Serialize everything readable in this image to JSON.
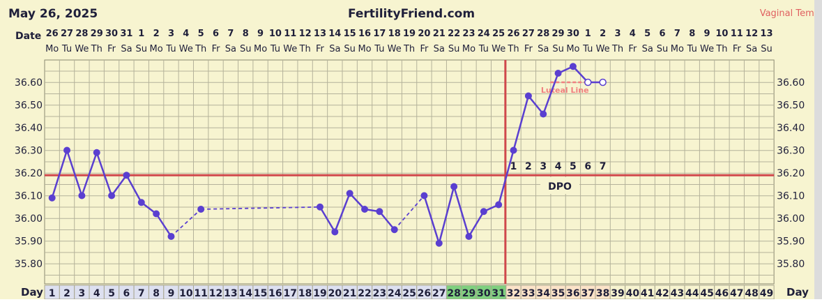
{
  "header": {
    "date_title": "May 26, 2025",
    "site": "FertilityFriend.com",
    "temp_method": "Vaginal Temp",
    "date_row_label": "Date",
    "day_row_label": "Day",
    "day_row_label_right": "Day",
    "dpo_label": "DPO"
  },
  "colors": {
    "background": "#f7f4d0",
    "grid": "#b4b29a",
    "coverline": "#d0484c",
    "ovulation_line": "#d0484c",
    "temp_line": "#5a3fd0",
    "luteal_line": "#f08080",
    "title_text": "#1f1f3a",
    "temp_method_text": "#e06060",
    "fertile_day_cell": "#7fd07f",
    "period_day_cell": "#dde0f0",
    "luteal_day_cell": "#fbe3c8",
    "future_day_cell": "#f7f4d0"
  },
  "chart_data": {
    "type": "line",
    "title": "May 26, 2025",
    "ylabel": "",
    "ylim": [
      35.75,
      36.7
    ],
    "y_ticks": [
      "36.60",
      "36.50",
      "36.40",
      "36.30",
      "36.20",
      "36.10",
      "36.00",
      "35.90",
      "35.80"
    ],
    "date_numbers": [
      "26",
      "27",
      "28",
      "29",
      "30",
      "31",
      "1",
      "2",
      "3",
      "4",
      "5",
      "6",
      "7",
      "8",
      "9",
      "10",
      "11",
      "12",
      "13",
      "14",
      "15",
      "16",
      "17",
      "18",
      "19",
      "20",
      "21",
      "22",
      "23",
      "24",
      "25",
      "26",
      "27",
      "28",
      "29",
      "30",
      "1",
      "2",
      "3",
      "4",
      "5",
      "6",
      "7",
      "8",
      "9",
      "10",
      "11",
      "12",
      "13"
    ],
    "weekdays": [
      "Mo",
      "Tu",
      "We",
      "Th",
      "Fr",
      "Sa",
      "Su",
      "Mo",
      "Tu",
      "We",
      "Th",
      "Fr",
      "Sa",
      "Su",
      "Mo",
      "Tu",
      "We",
      "Th",
      "Fr",
      "Sa",
      "Su",
      "Mo",
      "Tu",
      "We",
      "Th",
      "Fr",
      "Sa",
      "Su",
      "Mo",
      "Tu",
      "We",
      "Th",
      "Fr",
      "Sa",
      "Su",
      "Mo",
      "Tu",
      "We",
      "Th",
      "Fr",
      "Sa",
      "Su",
      "Mo",
      "Tu",
      "We",
      "Th",
      "Fr",
      "Sa",
      "Su"
    ],
    "cycle_days": [
      "1",
      "2",
      "3",
      "4",
      "5",
      "6",
      "7",
      "8",
      "9",
      "10",
      "11",
      "12",
      "13",
      "14",
      "15",
      "16",
      "17",
      "18",
      "19",
      "20",
      "21",
      "22",
      "23",
      "24",
      "25",
      "26",
      "27",
      "28",
      "29",
      "30",
      "31",
      "32",
      "33",
      "34",
      "35",
      "36",
      "37",
      "38",
      "39",
      "40",
      "41",
      "42",
      "43",
      "44",
      "45",
      "46",
      "47",
      "48",
      "49"
    ],
    "series": [
      {
        "points": [
          {
            "day": 1,
            "temp": 36.09
          },
          {
            "day": 2,
            "temp": 36.3
          },
          {
            "day": 3,
            "temp": 36.1
          },
          {
            "day": 4,
            "temp": 36.29
          },
          {
            "day": 5,
            "temp": 36.1
          },
          {
            "day": 6,
            "temp": 36.19
          },
          {
            "day": 7,
            "temp": 36.07
          },
          {
            "day": 8,
            "temp": 36.02
          },
          {
            "day": 9,
            "temp": 35.92
          },
          {
            "day": 11,
            "temp": 36.04
          },
          {
            "day": 19,
            "temp": 36.05
          },
          {
            "day": 20,
            "temp": 35.94
          },
          {
            "day": 21,
            "temp": 36.11
          },
          {
            "day": 22,
            "temp": 36.04
          },
          {
            "day": 23,
            "temp": 36.03
          },
          {
            "day": 24,
            "temp": 35.95
          },
          {
            "day": 26,
            "temp": 36.1
          },
          {
            "day": 27,
            "temp": 35.89
          },
          {
            "day": 28,
            "temp": 36.14
          },
          {
            "day": 29,
            "temp": 35.92
          },
          {
            "day": 30,
            "temp": 36.03
          },
          {
            "day": 31,
            "temp": 36.06
          },
          {
            "day": 32,
            "temp": 36.3
          },
          {
            "day": 33,
            "temp": 36.54
          },
          {
            "day": 34,
            "temp": 36.46
          },
          {
            "day": 35,
            "temp": 36.64
          },
          {
            "day": 36,
            "temp": 36.67
          },
          {
            "day": 37,
            "temp": 36.6,
            "open": true
          },
          {
            "day": 38,
            "temp": 36.6,
            "open": true
          }
        ]
      }
    ],
    "coverline_temp": 36.19,
    "ovulation_day": 31,
    "luteal_line": {
      "label": "Luteal Line",
      "temp": 36.6,
      "from_day": 34,
      "to_day": 37
    },
    "dpo_numbers": [
      "1",
      "2",
      "3",
      "4",
      "5",
      "6",
      "7"
    ],
    "fertile_days": [
      28,
      29,
      30,
      31
    ],
    "luteal_days": [
      32,
      33,
      34,
      35,
      36,
      37,
      38
    ],
    "period_days": [
      1,
      2,
      3,
      4,
      5,
      6,
      7,
      8,
      9,
      10,
      11,
      12,
      13,
      14,
      15,
      16,
      17,
      18,
      19,
      20,
      21,
      22,
      23,
      24,
      25,
      26,
      27
    ],
    "grid": true
  }
}
